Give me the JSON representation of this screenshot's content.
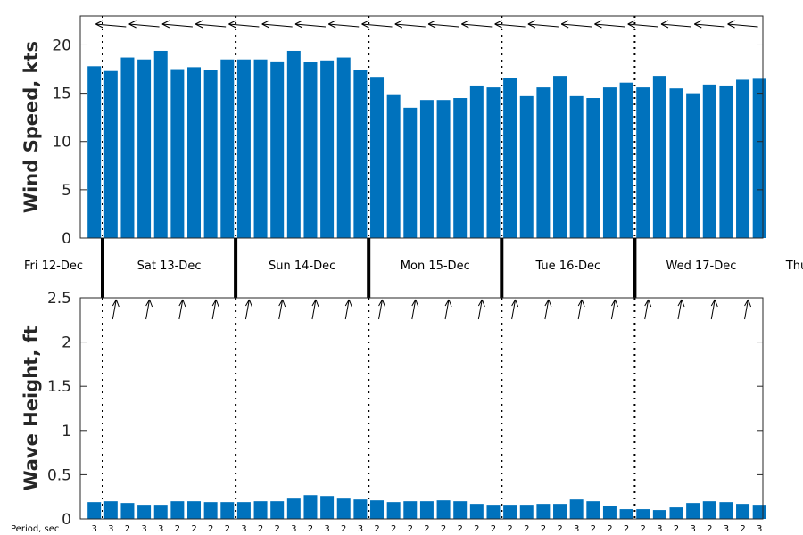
{
  "chart_data": [
    {
      "type": "bar",
      "ylabel": "Wind Speed, kts",
      "ylim": [
        0,
        23
      ],
      "yticks": [
        0,
        5,
        10,
        15,
        20
      ],
      "bar_color": "#0072bd",
      "values": [
        17.8,
        17.3,
        18.7,
        18.5,
        19.4,
        17.5,
        17.7,
        17.4,
        18.5,
        18.5,
        18.5,
        18.3,
        19.4,
        18.2,
        18.4,
        18.7,
        17.4,
        16.7,
        14.9,
        13.5,
        14.3,
        14.3,
        14.5,
        15.8,
        15.6,
        16.6,
        14.7,
        15.6,
        16.8,
        14.7,
        14.5,
        15.6,
        16.1,
        15.6,
        16.8,
        15.5,
        15.0,
        15.9,
        15.8,
        16.4,
        16.5
      ],
      "direction_arrows": "wind direction arrows drawn above each bar"
    },
    {
      "type": "bar",
      "ylabel": "Wave Height, ft",
      "ylim": [
        0,
        2.5
      ],
      "yticks": [
        "0",
        "0.5",
        "1",
        "1.5",
        "2",
        "2.5"
      ],
      "bar_color": "#0072bd",
      "values": [
        0.19,
        0.2,
        0.18,
        0.16,
        0.16,
        0.2,
        0.2,
        0.19,
        0.19,
        0.19,
        0.2,
        0.2,
        0.23,
        0.27,
        0.26,
        0.23,
        0.22,
        0.21,
        0.19,
        0.2,
        0.2,
        0.21,
        0.2,
        0.17,
        0.16,
        0.16,
        0.16,
        0.17,
        0.17,
        0.22,
        0.2,
        0.15,
        0.11,
        0.11,
        0.1,
        0.13,
        0.18,
        0.2,
        0.19,
        0.17,
        0.16
      ],
      "period_label": "Period, sec",
      "periods": [
        "3",
        "3",
        "2",
        "3",
        "3",
        "2",
        "2",
        "2",
        "2",
        "3",
        "2",
        "2",
        "3",
        "2",
        "3",
        "2",
        "3",
        "2",
        "2",
        "2",
        "2",
        "2",
        "2",
        "2",
        "2",
        "2",
        "2",
        "2",
        "2",
        "3",
        "2",
        "2",
        "2",
        "2",
        "3",
        "2",
        "3",
        "2",
        "3",
        "2",
        "3"
      ]
    }
  ],
  "days": [
    "Fri 12-Dec",
    "Sat 13-Dec",
    "Sun 14-Dec",
    "Mon 15-Dec",
    "Tue 16-Dec",
    "Wed 17-Dec",
    "Thu"
  ]
}
